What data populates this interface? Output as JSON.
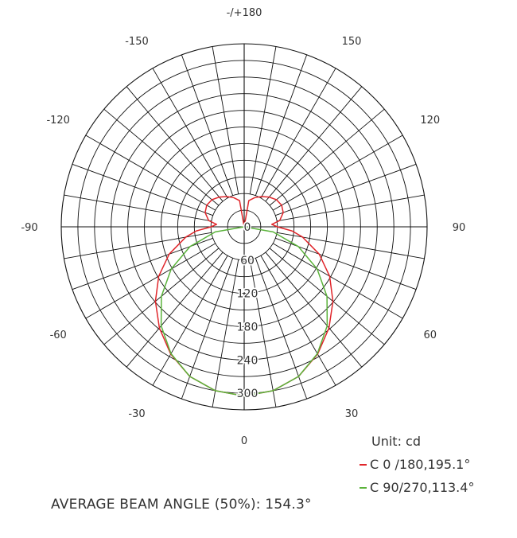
{
  "chart_data": {
    "type": "polar-line",
    "angle_labels": [
      {
        "deg": 180,
        "label": "-/+180"
      },
      {
        "deg": 150,
        "label": "150"
      },
      {
        "deg": 120,
        "label": "120"
      },
      {
        "deg": 90,
        "label": "90"
      },
      {
        "deg": 60,
        "label": "60"
      },
      {
        "deg": 30,
        "label": "30"
      },
      {
        "deg": 0,
        "label": "0"
      },
      {
        "deg": -30,
        "label": "-30"
      },
      {
        "deg": -60,
        "label": "-60"
      },
      {
        "deg": -90,
        "label": "-90"
      },
      {
        "deg": -120,
        "label": "-120"
      },
      {
        "deg": -150,
        "label": "-150"
      }
    ],
    "radial_ticks": [
      0,
      60,
      120,
      180,
      240,
      300
    ],
    "radial_max": 330,
    "unit_label": "Unit: cd",
    "series": [
      {
        "name": "C 0  /180,195.1°",
        "color": "#e0262b",
        "angles": [
          0,
          10,
          20,
          30,
          40,
          50,
          60,
          70,
          80,
          85,
          90,
          95,
          100,
          110,
          120,
          130,
          140,
          150,
          160,
          170,
          180
        ],
        "values": [
          305,
          300,
          287,
          265,
          238,
          209,
          178,
          144,
          107,
          87,
          60,
          50,
          65,
          75,
          78,
          76,
          70,
          63,
          56,
          48,
          0
        ]
      },
      {
        "name": "C 90/270,113.4°",
        "color": "#5bb33b",
        "angles": [
          0,
          10,
          20,
          30,
          40,
          50,
          60,
          70,
          80,
          90
        ],
        "values": [
          305,
          300,
          287,
          264,
          233,
          195,
          152,
          104,
          53,
          0
        ]
      }
    ]
  },
  "legend": {
    "unit": "Unit: cd",
    "items": [
      {
        "label": "C 0  /180,195.1°",
        "color": "#e0262b"
      },
      {
        "label": "C 90/270,113.4°",
        "color": "#5bb33b"
      }
    ]
  },
  "footer": "AVERAGE BEAM ANGLE (50%): 154.3°"
}
